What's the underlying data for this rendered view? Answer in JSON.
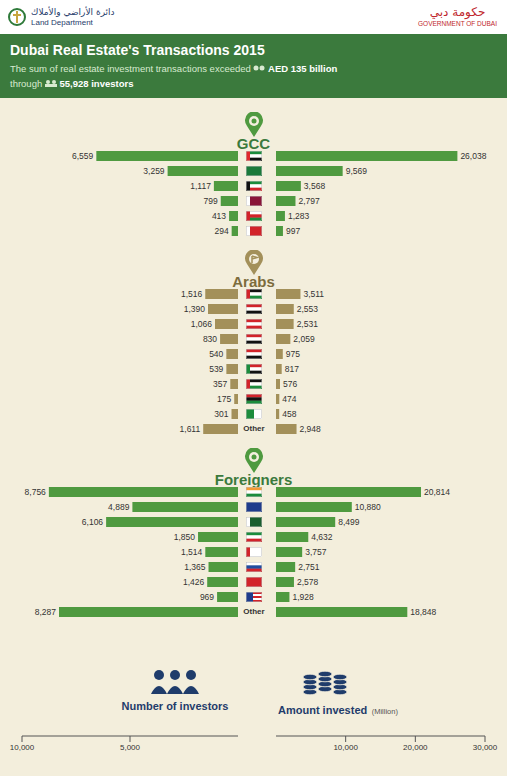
{
  "header": {
    "logo_left_ar": "دائرة الأراضي والأملاك",
    "logo_left_en": "Land Department",
    "logo_right_ar": "حكومة دبي",
    "logo_right_en": "GOVERNMENT OF DUBAI",
    "title": "Dubai Real Estate's Transactions 2015",
    "subtitle": [
      "The sum of real estate investment transactions exceeded",
      "AED 135 billion",
      "through",
      "55,928 investors"
    ]
  },
  "chart_data": {
    "type": "bar",
    "orientation": "horizontal",
    "data_labels": true,
    "grid": false,
    "left_axis": {
      "title": "Number of investors",
      "xlim": [
        0,
        10000
      ],
      "xticks": [
        {
          "value": 5000,
          "label": "5,000"
        },
        {
          "value": 10000,
          "label": "10,000"
        }
      ]
    },
    "right_axis": {
      "title": "Amount invested",
      "unit": "(Million)",
      "xlim": [
        0,
        30000
      ],
      "xticks": [
        {
          "value": 10000,
          "label": "10,000"
        },
        {
          "value": 20000,
          "label": "20,000"
        },
        {
          "value": 30000,
          "label": "30,000"
        }
      ]
    },
    "groups": [
      {
        "title": "GCC",
        "color": "#4f9a40",
        "categories": [
          null,
          null,
          null,
          null,
          null,
          null
        ],
        "investors": {
          "values": [
            6559,
            3259,
            1117,
            799,
            413,
            294
          ],
          "value_labels": [
            "6,559",
            "3,259",
            "1,117",
            "799",
            "413",
            "294"
          ]
        },
        "amounts": {
          "values": [
            26038,
            9569,
            3568,
            2797,
            1283,
            997
          ],
          "value_labels": [
            "26,038",
            "9,569",
            "3,568",
            "2,797",
            "1,283",
            "997"
          ]
        }
      },
      {
        "title": "Arabs",
        "color": "#a3905a",
        "categories": [
          null,
          null,
          null,
          null,
          null,
          null,
          null,
          null,
          null,
          "Other"
        ],
        "investors": {
          "values": [
            1516,
            1390,
            1066,
            830,
            540,
            539,
            357,
            175,
            301,
            1611
          ],
          "value_labels": [
            "1,516",
            "1,390",
            "1,066",
            "830",
            "540",
            "539",
            "357",
            "175",
            "301",
            "1,611"
          ]
        },
        "amounts": {
          "values": [
            3511,
            2553,
            2531,
            2059,
            975,
            817,
            576,
            474,
            458,
            2948
          ],
          "value_labels": [
            "3,511",
            "2,553",
            "2,531",
            "2,059",
            "975",
            "817",
            "576",
            "474",
            "458",
            "2,948"
          ]
        }
      },
      {
        "title": "Foreigners",
        "color": "#4f9a40",
        "categories": [
          null,
          null,
          null,
          null,
          null,
          null,
          null,
          null,
          "Other"
        ],
        "investors": {
          "values": [
            8756,
            4889,
            6106,
            1850,
            1514,
            1365,
            1426,
            969,
            8287
          ],
          "value_labels": [
            "8,756",
            "4,889",
            "6,106",
            "1,850",
            "1,514",
            "1,365",
            "1,426",
            "969",
            "8,287"
          ]
        },
        "amounts": {
          "values": [
            20814,
            10880,
            8499,
            4632,
            3757,
            2751,
            2578,
            1928,
            18848
          ],
          "value_labels": [
            "20,814",
            "10,880",
            "8,499",
            "4,632",
            "3,757",
            "2,751",
            "2,578",
            "1,928",
            "18,848"
          ]
        }
      }
    ]
  }
}
